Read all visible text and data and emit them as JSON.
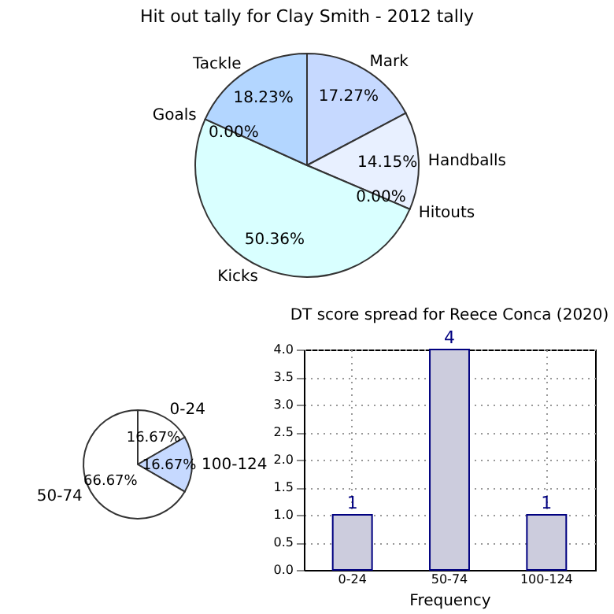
{
  "chart_data": [
    {
      "type": "pie",
      "title": "Hit out tally for Clay Smith - 2012 tally",
      "categories": [
        "Mark",
        "Handballs",
        "Hitouts",
        "Kicks",
        "Goals",
        "Tackle"
      ],
      "values": [
        17.27,
        14.15,
        0,
        50.36,
        0,
        18.23
      ],
      "colors": [
        "#c6d9ff",
        "#e8f0ff",
        "#f4f8ff",
        "#d9ffff",
        "#eef4ff",
        "#b3d6ff"
      ],
      "value_labels": [
        "17.27%",
        "14.15%",
        "0.00%",
        "50.36%",
        "0.00%",
        "18.23%"
      ]
    },
    {
      "type": "pie",
      "categories": [
        "0-24",
        "100-124",
        "50-74"
      ],
      "values": [
        16.67,
        16.67,
        66.67
      ],
      "colors": [
        "#ffffff",
        "#c6d9ff",
        "#ffffff"
      ],
      "value_labels": [
        "16.67%",
        "16.67%",
        "66.67%"
      ]
    },
    {
      "type": "bar",
      "title": "DT score spread for Reece Conca (2020)",
      "xlabel": "Frequency",
      "categories": [
        "0-24",
        "50-74",
        "100-124"
      ],
      "values": [
        1,
        4,
        1
      ],
      "color": "#ccccdd",
      "ylim": [
        0,
        4
      ],
      "yticks": [
        {
          "value": 0,
          "label": "0.0"
        },
        {
          "value": 0.5,
          "label": "0.5"
        },
        {
          "value": 1,
          "label": "1.0"
        },
        {
          "value": 1.5,
          "label": "1.5"
        },
        {
          "value": 2,
          "label": "2.0"
        },
        {
          "value": 2.5,
          "label": "2.5"
        },
        {
          "value": 3,
          "label": "3.0"
        },
        {
          "value": 3.5,
          "label": "3.5"
        },
        {
          "value": 4,
          "label": "4.0"
        }
      ],
      "grid": true,
      "data_labels": true
    }
  ]
}
